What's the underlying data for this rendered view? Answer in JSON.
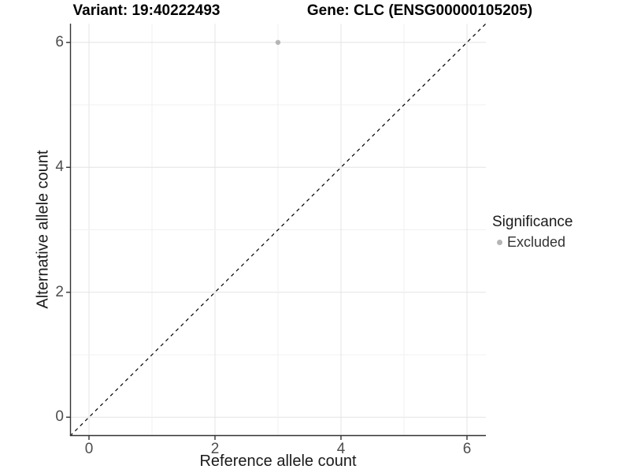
{
  "chart_data": {
    "type": "scatter",
    "title_left": "Variant: 19:40222493",
    "title_right": "Gene: CLC (ENSG00000105205)",
    "xlabel": "Reference allele count",
    "ylabel": "Alternative allele count",
    "xlim": [
      -0.3,
      6.3
    ],
    "ylim": [
      -0.3,
      6.3
    ],
    "x_ticks": [
      0,
      2,
      4,
      6
    ],
    "y_ticks": [
      0,
      2,
      4,
      6
    ],
    "grid_lines": [
      0,
      1,
      2,
      3,
      4,
      5,
      6
    ],
    "grid": "on",
    "legend_position": "right",
    "series": [
      {
        "name": "Excluded",
        "color": "#b5b5b5",
        "points": [
          {
            "x": 3,
            "y": 6
          }
        ]
      }
    ],
    "reference_line": {
      "type": "identity y=x",
      "style": "dashed",
      "color": "#000000",
      "from": [
        -0.3,
        -0.3
      ],
      "to": [
        6.3,
        6.3
      ]
    },
    "legend": {
      "title": "Significance",
      "entries": [
        {
          "label": "Excluded",
          "color": "#b5b5b5"
        }
      ]
    }
  },
  "colors": {
    "background": "#ffffff",
    "grid_major": "#e4e4e4",
    "grid_minor": "#f0f0f0",
    "axis_line": "#333333",
    "tick_mark": "#333333",
    "tick_label": "#4d4d4d",
    "axis_title": "#1a1a1a",
    "title": "#000000",
    "point": "#b5b5b5",
    "reference_line": "#000000"
  }
}
